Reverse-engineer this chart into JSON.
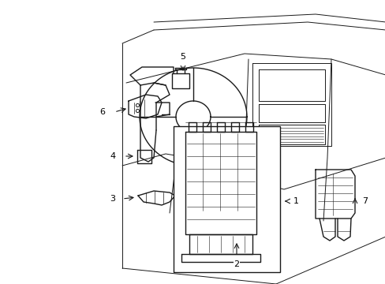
{
  "title": "",
  "background_color": "#ffffff",
  "line_color": "#1a1a1a",
  "label_color": "#000000",
  "fig_width": 4.89,
  "fig_height": 3.6,
  "dpi": 100,
  "lw_main": 1.0,
  "lw_thin": 0.7,
  "lw_detail": 0.5,
  "xlim": [
    0,
    489
  ],
  "ylim": [
    0,
    360
  ]
}
